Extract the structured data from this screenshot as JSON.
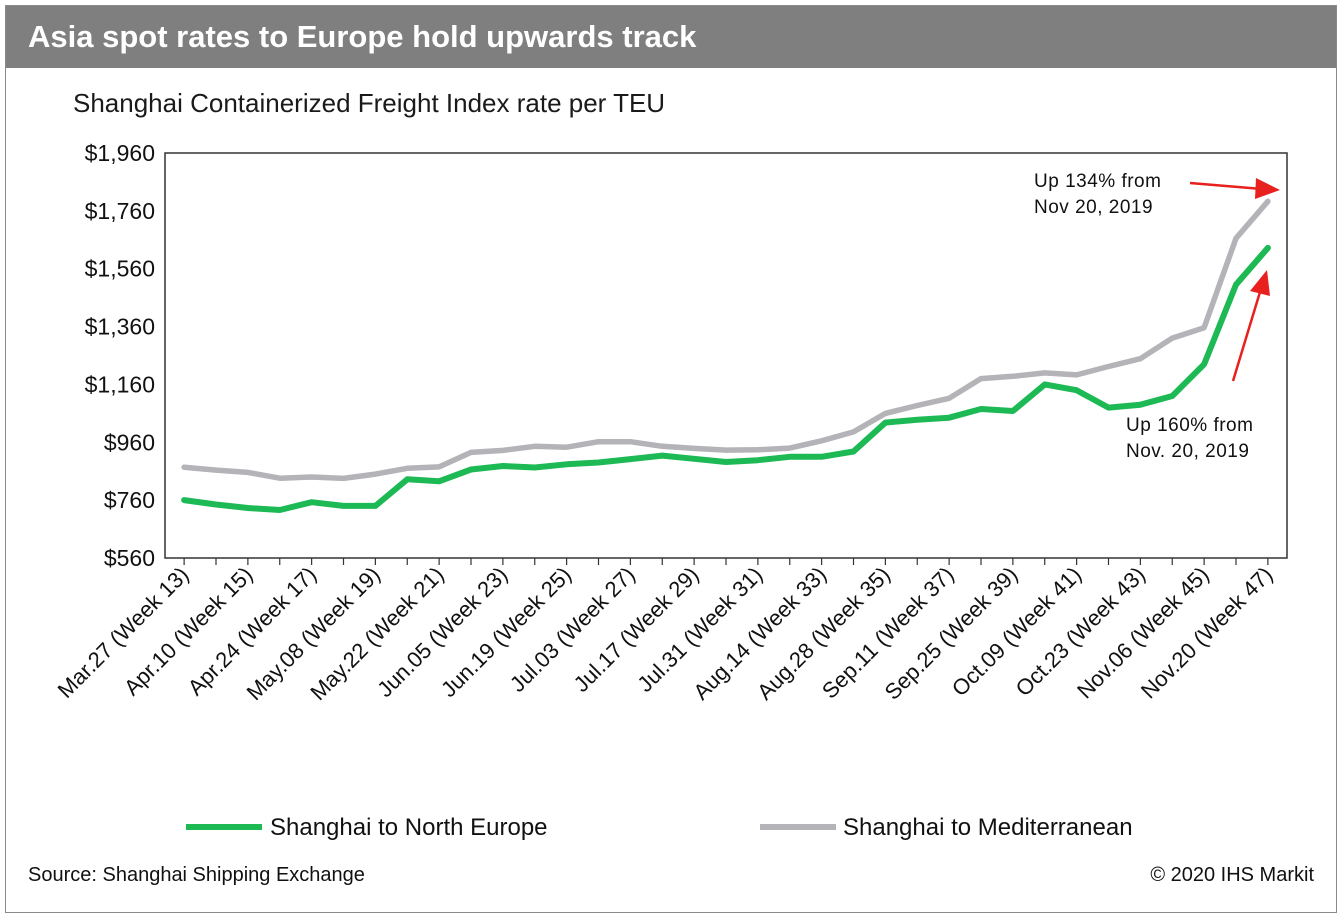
{
  "header": {
    "title": "Asia spot rates to Europe hold upwards track"
  },
  "footer": {
    "source": "Source: Shanghai Shipping Exchange",
    "copyright": "© 2020 IHS Markit"
  },
  "colors": {
    "north_europe": "#1db954",
    "mediterranean": "#b3b3b8",
    "arrow": "#e8201e",
    "title_bar": "#7f7f7f"
  },
  "chart_data": {
    "type": "line",
    "title": "Shanghai Containerized Freight Index rate per TEU",
    "ylim": [
      560,
      1960
    ],
    "yticks": [
      560,
      760,
      960,
      1160,
      1360,
      1560,
      1760,
      1960
    ],
    "ytick_labels": [
      "$560",
      "$760",
      "$960",
      "$1,160",
      "$1,360",
      "$1,560",
      "$1,760",
      "$1,960"
    ],
    "x": [
      13,
      14,
      15,
      16,
      17,
      18,
      19,
      20,
      21,
      22,
      23,
      24,
      25,
      26,
      27,
      28,
      29,
      30,
      31,
      32,
      33,
      34,
      35,
      36,
      37,
      38,
      39,
      40,
      41,
      42,
      43,
      44,
      45,
      46,
      47
    ],
    "xtick_labels": [
      "Mar.27 (Week 13)",
      "Apr.10 (Week 15)",
      "Apr.24 (Week 17)",
      "May.08 (Week 19)",
      "May.22 (Week 21)",
      "Jun.05 (Week 23)",
      "Jun.19 (Week 25)",
      "Jul.03 (Week 27)",
      "Jul.17 (Week 29)",
      "Jul.31 (Week 31)",
      "Aug.14 (Week 33)",
      "Aug.28 (Week 35)",
      "Sep.11 (Week 37)",
      "Sep.25 (Week 39)",
      "Oct.09 (Week 41)",
      "Oct.23 (Week 43)",
      "Nov.06 (Week 45)",
      "Nov.20 (Week 47)"
    ],
    "xtick_weeks": [
      13,
      15,
      17,
      19,
      21,
      23,
      25,
      27,
      29,
      31,
      33,
      35,
      37,
      39,
      41,
      43,
      45,
      47
    ],
    "series": [
      {
        "name": "Shanghai to North Europe",
        "color": "#1db954",
        "values": [
          760,
          745,
          733,
          726,
          753,
          740,
          740,
          832,
          825,
          866,
          878,
          873,
          884,
          890,
          902,
          914,
          903,
          892,
          898,
          910,
          910,
          928,
          1028,
          1038,
          1045,
          1075,
          1068,
          1160,
          1140,
          1080,
          1090,
          1120,
          1230,
          1505,
          1632
        ]
      },
      {
        "name": "Shanghai to Mediterranean",
        "color": "#b3b3b8",
        "values": [
          874,
          864,
          856,
          836,
          840,
          835,
          850,
          870,
          875,
          925,
          932,
          946,
          943,
          962,
          962,
          946,
          939,
          933,
          934,
          940,
          965,
          996,
          1060,
          1087,
          1112,
          1180,
          1188,
          1200,
          1193,
          1222,
          1249,
          1320,
          1356,
          1665,
          1793
        ]
      }
    ],
    "annotations": [
      {
        "text": [
          "Up 134% from",
          "Nov 20, 2019"
        ],
        "series": "Shanghai to Mediterranean"
      },
      {
        "text": [
          "Up  160% from",
          "Nov. 20, 2019"
        ],
        "series": "Shanghai to North Europe"
      }
    ],
    "legend": {
      "position": "bottom"
    },
    "grid": false
  }
}
